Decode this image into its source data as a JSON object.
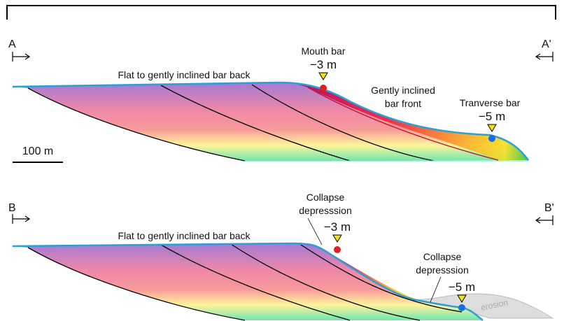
{
  "section_a": {
    "start_label": "A",
    "end_label": "A'",
    "back_label": "Flat to gently inclined bar back",
    "mouth_bar": {
      "name": "Mouth bar",
      "depth": "−3 m"
    },
    "front_label": [
      "Gently inclined",
      "bar front"
    ],
    "transverse_bar": {
      "name": "Tranverse bar",
      "depth": "−5 m"
    }
  },
  "scale_bar": "100 m",
  "section_b": {
    "start_label": "B",
    "end_label": "B'",
    "back_label": "Flat to gently inclined bar back",
    "upper_collapse": {
      "name": [
        "Collapse",
        "depresssion"
      ],
      "depth": "−3 m"
    },
    "lower_collapse": {
      "name": [
        "Collapse",
        "depresssion"
      ],
      "depth": "−5 m"
    },
    "erosion_label": "erosion"
  }
}
